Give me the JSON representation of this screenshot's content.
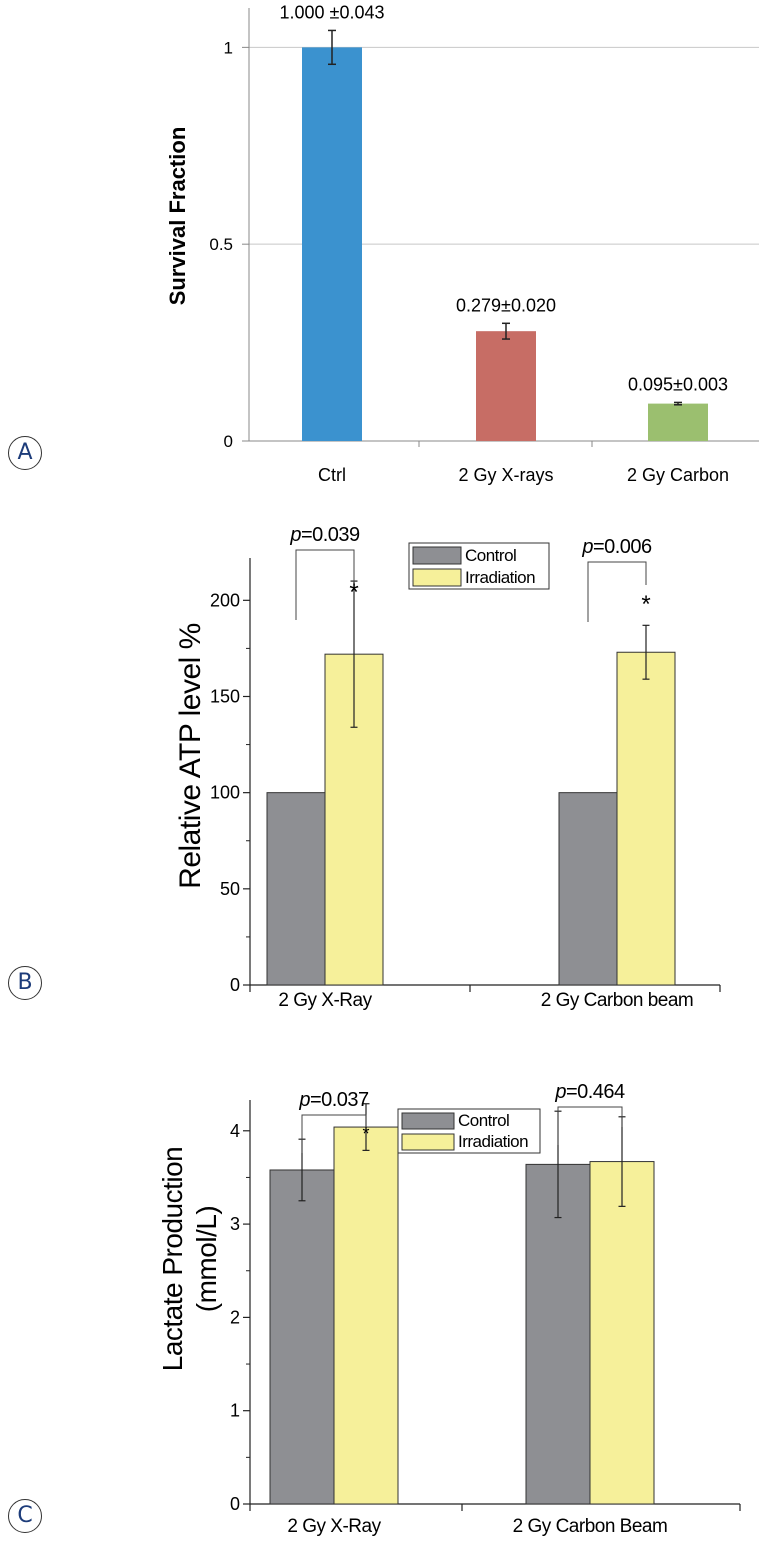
{
  "panel_labels": {
    "a": "A",
    "b": "B",
    "c": "C"
  },
  "chart_data": [
    {
      "type": "bar",
      "panel": "A",
      "categories": [
        "Ctrl",
        "2 Gy X-rays",
        "2 Gy Carbon"
      ],
      "values": [
        1.0,
        0.279,
        0.095
      ],
      "errors": [
        0.043,
        0.02,
        0.003
      ],
      "value_labels": [
        "1.000 ±0.043",
        "0.279±0.020",
        "0.095±0.003"
      ],
      "colors": [
        "#3b92cf",
        "#c76d65",
        "#9bbf6f"
      ],
      "ylabel": "Survival Fraction",
      "xlabel": "",
      "ylim": [
        0,
        1.1
      ],
      "yticks": [
        "0",
        "0.5",
        "1"
      ],
      "grid": true
    },
    {
      "type": "bar",
      "panel": "B",
      "categories": [
        "2 Gy X-Ray",
        "2 Gy Carbon beam"
      ],
      "series": [
        {
          "name": "Control",
          "color": "#8e8f93",
          "values": [
            100,
            100
          ],
          "errors": [
            0,
            0
          ]
        },
        {
          "name": "Irradiation",
          "color": "#f6f09a",
          "values": [
            172,
            173
          ],
          "errors": [
            38,
            14
          ]
        }
      ],
      "ylabel": "Relative ATP level %",
      "xlabel": "",
      "ylim": [
        0,
        222
      ],
      "yticks": [
        "0",
        "50",
        "100",
        "150",
        "200"
      ],
      "legend_position": "top-center",
      "annotations": [
        {
          "p_prefix": "p",
          "p_value": "=0.039",
          "star": "*"
        },
        {
          "p_prefix": "p",
          "p_value": "=0.006",
          "star": "*"
        }
      ]
    },
    {
      "type": "bar",
      "panel": "C",
      "categories": [
        "2 Gy X-Ray",
        "2 Gy Carbon Beam"
      ],
      "series": [
        {
          "name": "Control",
          "color": "#8e8f93",
          "values": [
            3.58,
            3.64
          ],
          "errors": [
            0.33,
            0.57
          ]
        },
        {
          "name": "Irradiation",
          "color": "#f6f09a",
          "values": [
            4.04,
            3.67
          ],
          "errors": [
            0.25,
            0.48
          ]
        }
      ],
      "ylabel_lines": [
        "Lactate Production",
        "(mmol/L)"
      ],
      "xlabel": "",
      "ylim": [
        0,
        4.33
      ],
      "yticks": [
        "0",
        "1",
        "2",
        "3",
        "4"
      ],
      "legend_position": "top-center",
      "annotations": [
        {
          "p_prefix": "p",
          "p_value": "=0.037",
          "star": "*"
        },
        {
          "p_prefix": "p",
          "p_value": "=0.464",
          "star": ""
        }
      ]
    }
  ]
}
